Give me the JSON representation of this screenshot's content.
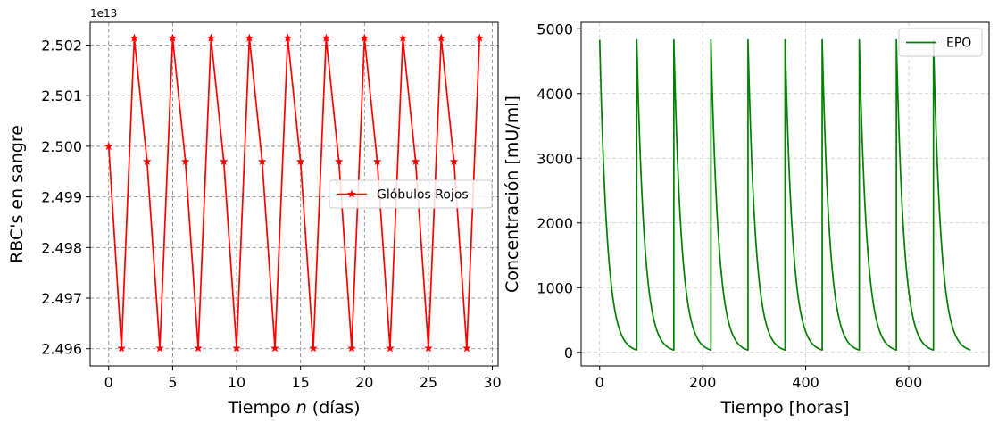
{
  "chart_data": [
    {
      "type": "line",
      "title": "",
      "xlabel": "Tiempo n (días)",
      "xlabel_parts": {
        "before": "Tiempo ",
        "italic": "n",
        "after": " (días)"
      },
      "ylabel": "RBC's en sangre",
      "y_offset_text": "1e13",
      "xlim": [
        -1.45,
        30.45
      ],
      "ylim": [
        2.49566,
        2.50245
      ],
      "xticks": [
        0,
        5,
        10,
        15,
        20,
        25,
        30
      ],
      "yticks": [
        2.496,
        2.497,
        2.498,
        2.499,
        2.5,
        2.501,
        2.502
      ],
      "ytick_labels": [
        "2.496",
        "2.497",
        "2.498",
        "2.499",
        "2.500",
        "2.501",
        "2.502"
      ],
      "grid": "on, dashed",
      "legend_position": "center-right",
      "series": [
        {
          "name": "Glóbulos Rojos",
          "color": "#ff0000",
          "marker": "star",
          "x": [
            0,
            1,
            2,
            3,
            4,
            5,
            6,
            7,
            8,
            9,
            10,
            11,
            12,
            13,
            14,
            15,
            16,
            17,
            18,
            19,
            20,
            21,
            22,
            23,
            24,
            25,
            26,
            27,
            28,
            29
          ],
          "y": [
            2.5,
            2.49601,
            2.50214,
            2.4997,
            2.49601,
            2.50214,
            2.4997,
            2.49601,
            2.50214,
            2.4997,
            2.49601,
            2.50214,
            2.4997,
            2.49601,
            2.50214,
            2.4997,
            2.49601,
            2.50214,
            2.4997,
            2.49601,
            2.50214,
            2.4997,
            2.49601,
            2.50214,
            2.4997,
            2.49601,
            2.50214,
            2.4997,
            2.49601,
            2.50214
          ]
        }
      ]
    },
    {
      "type": "line",
      "title": "",
      "xlabel": "Tiempo [horas]",
      "ylabel": "Concentración [mU/ml]",
      "xlim": [
        -36,
        756
      ],
      "ylim": [
        -210,
        5100
      ],
      "xticks": [
        0,
        200,
        400,
        600
      ],
      "yticks": [
        0,
        1000,
        2000,
        3000,
        4000,
        5000
      ],
      "grid": "on, light dashed",
      "legend_position": "top-right",
      "series": [
        {
          "name": "EPO",
          "color": "#008000",
          "dose_times": [
            0,
            72,
            144,
            216,
            288,
            360,
            432,
            504,
            576,
            648
          ],
          "peak": 4830,
          "decay_per_hour": 0.068,
          "x_end": 720
        }
      ]
    }
  ]
}
